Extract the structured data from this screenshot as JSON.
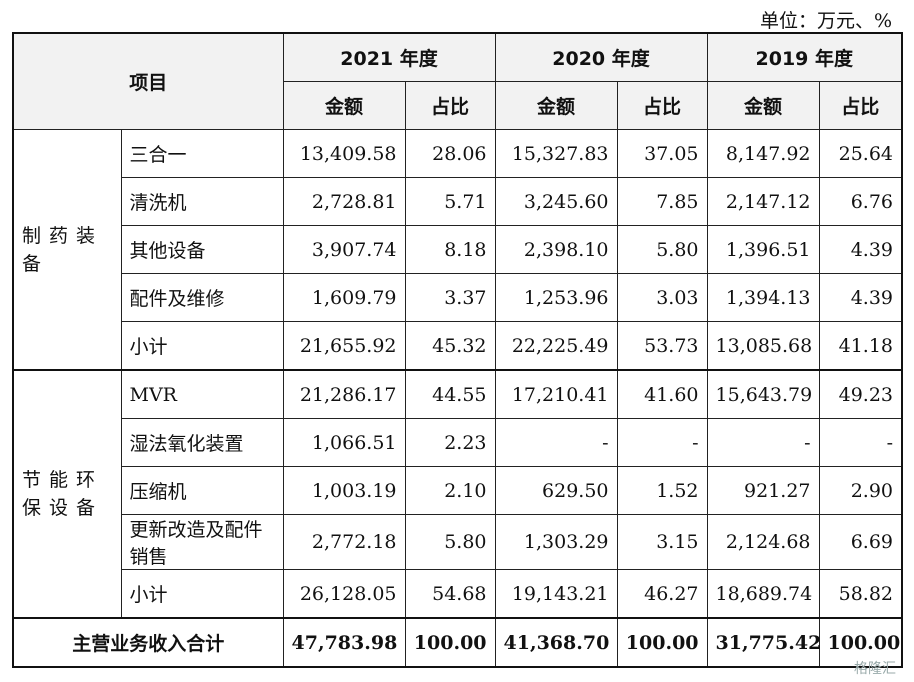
{
  "unit": "单位：万元、%",
  "header": {
    "item": "项目",
    "years": [
      "2021 年度",
      "2020 年度",
      "2019 年度"
    ],
    "amount": "金额",
    "ratio": "占比"
  },
  "groups": [
    {
      "category": "制药装备",
      "rows": [
        {
          "name": "三合一",
          "v": [
            "13,409.58",
            "28.06",
            "15,327.83",
            "37.05",
            "8,147.92",
            "25.64"
          ]
        },
        {
          "name": "清洗机",
          "v": [
            "2,728.81",
            "5.71",
            "3,245.60",
            "7.85",
            "2,147.12",
            "6.76"
          ]
        },
        {
          "name": "其他设备",
          "v": [
            "3,907.74",
            "8.18",
            "2,398.10",
            "5.80",
            "1,396.51",
            "4.39"
          ]
        },
        {
          "name": "配件及维修",
          "v": [
            "1,609.79",
            "3.37",
            "1,253.96",
            "3.03",
            "1,394.13",
            "4.39"
          ]
        },
        {
          "name": "小计",
          "v": [
            "21,655.92",
            "45.32",
            "22,225.49",
            "53.73",
            "13,085.68",
            "41.18"
          ]
        }
      ]
    },
    {
      "category": "节能环保设备",
      "rows": [
        {
          "name": "MVR",
          "v": [
            "21,286.17",
            "44.55",
            "17,210.41",
            "41.60",
            "15,643.79",
            "49.23"
          ]
        },
        {
          "name": "湿法氧化装置",
          "v": [
            "1,066.51",
            "2.23",
            "-",
            "-",
            "-",
            "-"
          ]
        },
        {
          "name": "压缩机",
          "v": [
            "1,003.19",
            "2.10",
            "629.50",
            "1.52",
            "921.27",
            "2.90"
          ]
        },
        {
          "name": "更新改造及配件销售",
          "v": [
            "2,772.18",
            "5.80",
            "1,303.29",
            "3.15",
            "2,124.68",
            "6.69"
          ]
        },
        {
          "name": "小计",
          "v": [
            "26,128.05",
            "54.68",
            "19,143.21",
            "46.27",
            "18,689.74",
            "58.82"
          ]
        }
      ]
    }
  ],
  "total": {
    "name": "主营业务收入合计",
    "v": [
      "47,783.98",
      "100.00",
      "41,368.70",
      "100.00",
      "31,775.42",
      "100.00"
    ]
  },
  "watermark": "格隆汇"
}
